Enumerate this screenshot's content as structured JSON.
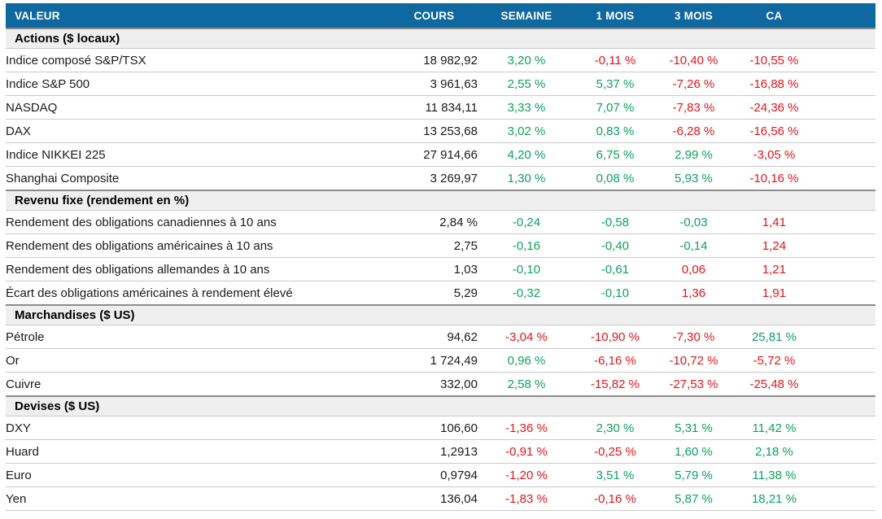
{
  "colors": {
    "header_bg": "#0F69A0",
    "header_text": "#FFFFFF",
    "positive": "#0EA25C",
    "negative": "#E2151B",
    "neutral": "#1A1A1A",
    "section_bg": "#EFEFEF"
  },
  "chart_data": {
    "type": "table",
    "columns": [
      "VALEUR",
      "COURS",
      "SEMAINE",
      "1 MOIS",
      "3 MOIS",
      "CA"
    ],
    "sections": [
      {
        "title": "Actions ($ locaux)",
        "rows": [
          {
            "label": "Indice composé S&P/TSX",
            "cells": [
              {
                "t": "18 982,92",
                "s": "x"
              },
              {
                "t": "3,20 %",
                "s": "p"
              },
              {
                "t": "-0,11 %",
                "s": "n"
              },
              {
                "t": "-10,40 %",
                "s": "n"
              },
              {
                "t": "-10,55 %",
                "s": "n"
              }
            ]
          },
          {
            "label": "Indice S&P 500",
            "cells": [
              {
                "t": "3 961,63",
                "s": "x"
              },
              {
                "t": "2,55 %",
                "s": "p"
              },
              {
                "t": "5,37 %",
                "s": "p"
              },
              {
                "t": "-7,26 %",
                "s": "n"
              },
              {
                "t": "-16,88 %",
                "s": "n"
              }
            ]
          },
          {
            "label": "NASDAQ",
            "cells": [
              {
                "t": "11 834,11",
                "s": "x"
              },
              {
                "t": "3,33 %",
                "s": "p"
              },
              {
                "t": "7,07 %",
                "s": "p"
              },
              {
                "t": "-7,83 %",
                "s": "n"
              },
              {
                "t": "-24,36 %",
                "s": "n"
              }
            ]
          },
          {
            "label": "DAX",
            "cells": [
              {
                "t": "13 253,68",
                "s": "x"
              },
              {
                "t": "3,02 %",
                "s": "p"
              },
              {
                "t": "0,83 %",
                "s": "p"
              },
              {
                "t": "-6,28 %",
                "s": "n"
              },
              {
                "t": "-16,56 %",
                "s": "n"
              }
            ]
          },
          {
            "label": "Indice NIKKEI 225",
            "cells": [
              {
                "t": "27 914,66",
                "s": "x"
              },
              {
                "t": "4,20 %",
                "s": "p"
              },
              {
                "t": "6,75 %",
                "s": "p"
              },
              {
                "t": "2,99 %",
                "s": "p"
              },
              {
                "t": "-3,05 %",
                "s": "n"
              }
            ]
          },
          {
            "label": "Shanghai Composite",
            "cells": [
              {
                "t": "3 269,97",
                "s": "x"
              },
              {
                "t": "1,30 %",
                "s": "p"
              },
              {
                "t": "0,08 %",
                "s": "p"
              },
              {
                "t": "5,93 %",
                "s": "p"
              },
              {
                "t": "-10,16 %",
                "s": "n"
              }
            ]
          }
        ]
      },
      {
        "title": "Revenu fixe (rendement en %)",
        "rows": [
          {
            "label": "Rendement des obligations canadiennes à 10 ans",
            "cells": [
              {
                "t": "2,84 %",
                "s": "x"
              },
              {
                "t": "-0,24",
                "s": "p"
              },
              {
                "t": "-0,58",
                "s": "p"
              },
              {
                "t": "-0,03",
                "s": "p"
              },
              {
                "t": "1,41",
                "s": "n"
              }
            ]
          },
          {
            "label": "Rendement des obligations américaines à 10 ans",
            "cells": [
              {
                "t": "2,75",
                "s": "x"
              },
              {
                "t": "-0,16",
                "s": "p"
              },
              {
                "t": "-0,40",
                "s": "p"
              },
              {
                "t": "-0,14",
                "s": "p"
              },
              {
                "t": "1,24",
                "s": "n"
              }
            ]
          },
          {
            "label": "Rendement des obligations allemandes à 10 ans",
            "cells": [
              {
                "t": "1,03",
                "s": "x"
              },
              {
                "t": "-0,10",
                "s": "p"
              },
              {
                "t": "-0,61",
                "s": "p"
              },
              {
                "t": "0,06",
                "s": "n"
              },
              {
                "t": "1,21",
                "s": "n"
              }
            ]
          },
          {
            "label": "Écart des obligations américaines à rendement élevé",
            "cells": [
              {
                "t": "5,29",
                "s": "x"
              },
              {
                "t": "-0,32",
                "s": "p"
              },
              {
                "t": "-0,10",
                "s": "p"
              },
              {
                "t": "1,36",
                "s": "n"
              },
              {
                "t": "1,91",
                "s": "n"
              }
            ]
          }
        ]
      },
      {
        "title": "Marchandises ($ US)",
        "rows": [
          {
            "label": "Pétrole",
            "cells": [
              {
                "t": "94,62",
                "s": "x"
              },
              {
                "t": "-3,04 %",
                "s": "n"
              },
              {
                "t": "-10,90 %",
                "s": "n"
              },
              {
                "t": "-7,30 %",
                "s": "n"
              },
              {
                "t": "25,81 %",
                "s": "p"
              }
            ]
          },
          {
            "label": "Or",
            "cells": [
              {
                "t": "1 724,49",
                "s": "x"
              },
              {
                "t": "0,96 %",
                "s": "p"
              },
              {
                "t": "-6,16 %",
                "s": "n"
              },
              {
                "t": "-10,72 %",
                "s": "n"
              },
              {
                "t": "-5,72 %",
                "s": "n"
              }
            ]
          },
          {
            "label": "Cuivre",
            "cells": [
              {
                "t": "332,00",
                "s": "x"
              },
              {
                "t": "2,58 %",
                "s": "p"
              },
              {
                "t": "-15,82 %",
                "s": "n"
              },
              {
                "t": "-27,53 %",
                "s": "n"
              },
              {
                "t": "-25,48 %",
                "s": "n"
              }
            ]
          }
        ]
      },
      {
        "title": "Devises ($ US)",
        "rows": [
          {
            "label": "DXY",
            "cells": [
              {
                "t": "106,60",
                "s": "x"
              },
              {
                "t": "-1,36 %",
                "s": "n"
              },
              {
                "t": "2,30 %",
                "s": "p"
              },
              {
                "t": "5,31 %",
                "s": "p"
              },
              {
                "t": "11,42 %",
                "s": "p"
              }
            ]
          },
          {
            "label": "Huard",
            "cells": [
              {
                "t": "1,2913",
                "s": "x"
              },
              {
                "t": "-0,91 %",
                "s": "n"
              },
              {
                "t": "-0,25 %",
                "s": "n"
              },
              {
                "t": "1,60 %",
                "s": "p"
              },
              {
                "t": "2,18 %",
                "s": "p"
              }
            ]
          },
          {
            "label": "Euro",
            "cells": [
              {
                "t": "0,9794",
                "s": "x"
              },
              {
                "t": "-1,20 %",
                "s": "n"
              },
              {
                "t": "3,51 %",
                "s": "p"
              },
              {
                "t": "5,79 %",
                "s": "p"
              },
              {
                "t": "11,38 %",
                "s": "p"
              }
            ]
          },
          {
            "label": "Yen",
            "cells": [
              {
                "t": "136,04",
                "s": "x"
              },
              {
                "t": "-1,83 %",
                "s": "n"
              },
              {
                "t": "-0,16 %",
                "s": "n"
              },
              {
                "t": "5,87 %",
                "s": "p"
              },
              {
                "t": "18,21 %",
                "s": "p"
              }
            ]
          }
        ]
      }
    ]
  }
}
